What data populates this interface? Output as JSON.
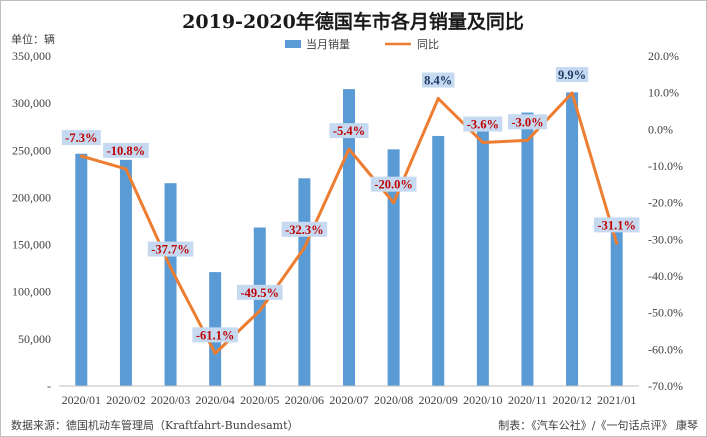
{
  "chart_data": {
    "type": "bar+line",
    "title": "2019-2020年德国车市各月销量及同比",
    "unit_label": "单位：辆",
    "categories": [
      "2020/01",
      "2020/02",
      "2020/03",
      "2020/04",
      "2020/05",
      "2020/06",
      "2020/07",
      "2020/08",
      "2020/09",
      "2020/10",
      "2020/11",
      "2020/12",
      "2021/01"
    ],
    "series": [
      {
        "name": "当月销量",
        "type": "bar",
        "axis": "left",
        "color": "#5b9bd5",
        "values": [
          246300,
          239900,
          215100,
          120800,
          168100,
          220300,
          314900,
          251000,
          265200,
          269900,
          290000,
          311400,
          169800
        ]
      },
      {
        "name": "同比",
        "type": "line",
        "axis": "right",
        "color": "#ed7d31",
        "values": [
          -7.3,
          -10.8,
          -37.7,
          -61.1,
          -49.5,
          -32.3,
          -5.4,
          -20.0,
          8.4,
          -3.6,
          -3.0,
          9.9,
          -31.1
        ],
        "labels": [
          "-7.3%",
          "-10.8%",
          "-37.7%",
          "-61.1%",
          "-49.5%",
          "-32.3%",
          "-5.4%",
          "-20.0%",
          "8.4%",
          "-3.6%",
          "-3.0%",
          "9.9%",
          "-31.1%"
        ],
        "label_positive_color": "#1f3864",
        "label_negative_color": "#c00000",
        "label_background": "#c5d9f1"
      }
    ],
    "y_left": {
      "min": 0,
      "max": 350000,
      "step": 50000,
      "tick_labels": [
        "-",
        "50,000",
        "100,000",
        "150,000",
        "200,000",
        "250,000",
        "300,000",
        "350,000"
      ]
    },
    "y_right": {
      "min": -70,
      "max": 20,
      "step": 10,
      "tick_labels": [
        "-70.0%",
        "-60.0%",
        "-50.0%",
        "-40.0%",
        "-30.0%",
        "-20.0%",
        "-10.0%",
        "0.0%",
        "10.0%",
        "20.0%"
      ]
    },
    "grid": false,
    "legend_position": "top"
  },
  "footer": {
    "source": "数据来源：德国机动车管理局（Kraftfahrt-Bundesamt）",
    "credit": "制表：《汽车公社》/《一句话点评》 康琴"
  }
}
